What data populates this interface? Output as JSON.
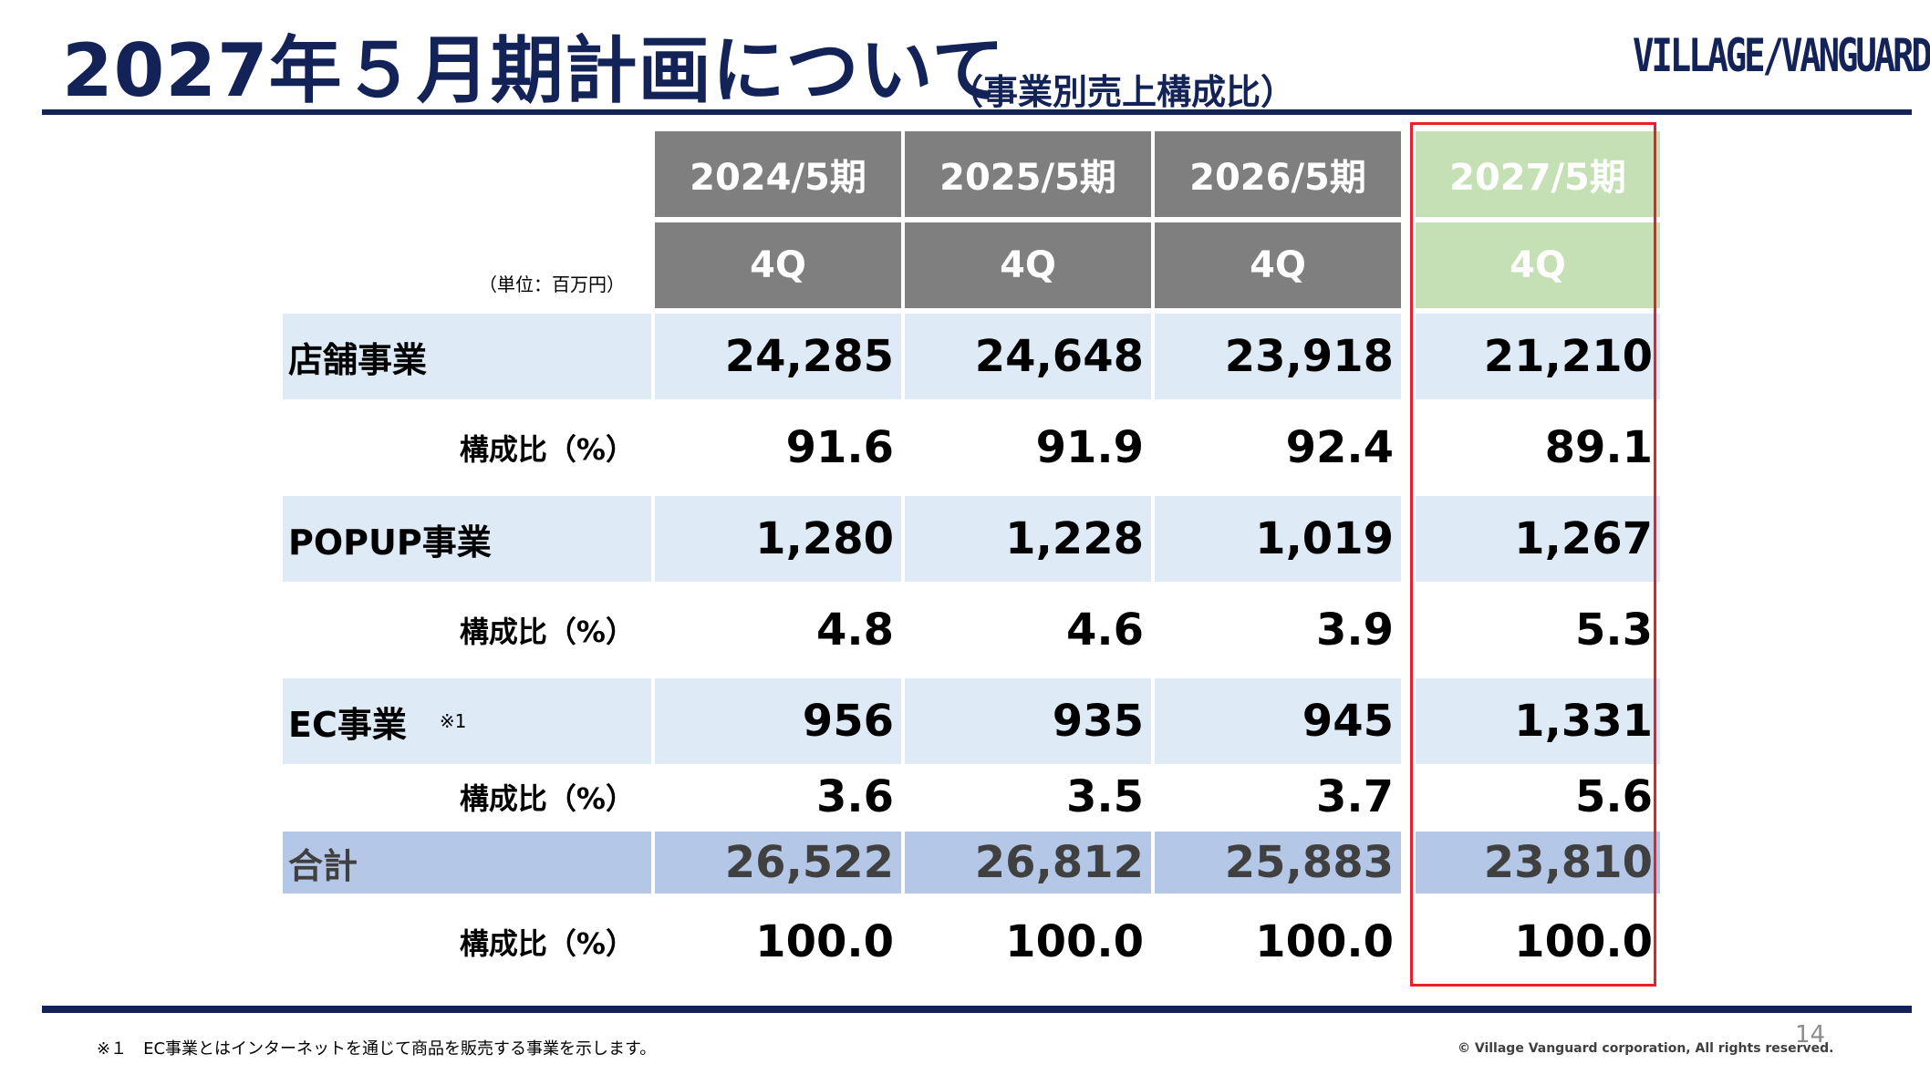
{
  "title": "2027年５月期計画について",
  "subtitle": "（事業別売上構成比）",
  "logo": "VILLAGE/VANGUARD",
  "unit": "（単位：百万円）",
  "columns": [
    {
      "period": "2024/5期",
      "quarter": "4Q"
    },
    {
      "period": "2025/5期",
      "quarter": "4Q"
    },
    {
      "period": "2026/5期",
      "quarter": "4Q"
    },
    {
      "period": "2027/5期",
      "quarter": "4Q"
    }
  ],
  "rows": [
    {
      "label": "店舗事業",
      "values": [
        "24,285",
        "24,648",
        "23,918",
        "21,210"
      ]
    },
    {
      "label": "構成比（%）",
      "values": [
        "91.6",
        "91.9",
        "92.4",
        "89.1"
      ]
    },
    {
      "label": "POPUP事業",
      "values": [
        "1,280",
        "1,228",
        "1,019",
        "1,267"
      ]
    },
    {
      "label": "構成比（%）",
      "values": [
        "4.8",
        "4.6",
        "3.9",
        "5.3"
      ]
    },
    {
      "label": "EC事業",
      "note": "※1",
      "values": [
        "956",
        "935",
        "945",
        "1,331"
      ]
    },
    {
      "label": "構成比（%）",
      "values": [
        "3.6",
        "3.5",
        "3.7",
        "5.6"
      ]
    },
    {
      "label": "合計",
      "values": [
        "26,522",
        "26,812",
        "25,883",
        "23,810"
      ]
    },
    {
      "label": "構成比（%）",
      "values": [
        "100.0",
        "100.0",
        "100.0",
        "100.0"
      ]
    }
  ],
  "footnote": "※１　EC事業とはインターネットを通じて商品を販売する事業を示します。",
  "copyright": "© Village Vanguard corporation, All rights reserved.",
  "page_number": "14",
  "colors": {
    "navy": "#132257",
    "header_gray": "#7f7f7f",
    "header_green": "#c5e0b4",
    "row_light": "#deebf7",
    "row_total": "#b4c7e7",
    "highlight_border": "#e8202a"
  }
}
